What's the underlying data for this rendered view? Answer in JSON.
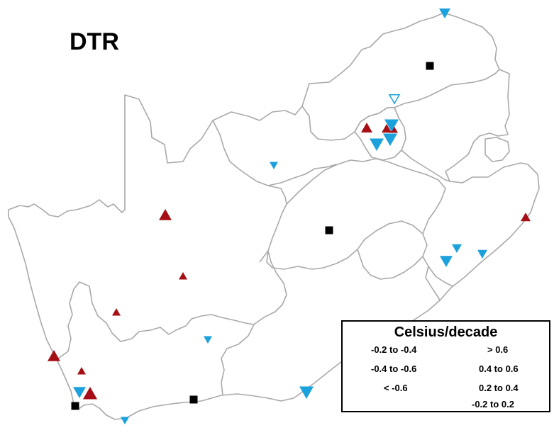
{
  "title": "DTR",
  "colors": {
    "border": "#a9a9a9",
    "decrease": "#1ba1dc",
    "increase": "#a50f15",
    "neutral": "#000000"
  },
  "legend": {
    "title": "Celsius/decade",
    "decrease": [
      {
        "label": "-0.2 to -0.4",
        "style": "small-open"
      },
      {
        "label": "-0.4 to -0.6",
        "style": "medium-open"
      },
      {
        "label": "< -0.6",
        "style": "large-open"
      }
    ],
    "increase": [
      {
        "label": "> 0.6",
        "style": "large-open"
      },
      {
        "label": "0.4 to 0.6",
        "style": "medium-open"
      },
      {
        "label": "0.2 to 0.4",
        "style": "small-open"
      }
    ],
    "neutral": {
      "label": "-0.2 to 0.2",
      "style": "square"
    }
  }
}
